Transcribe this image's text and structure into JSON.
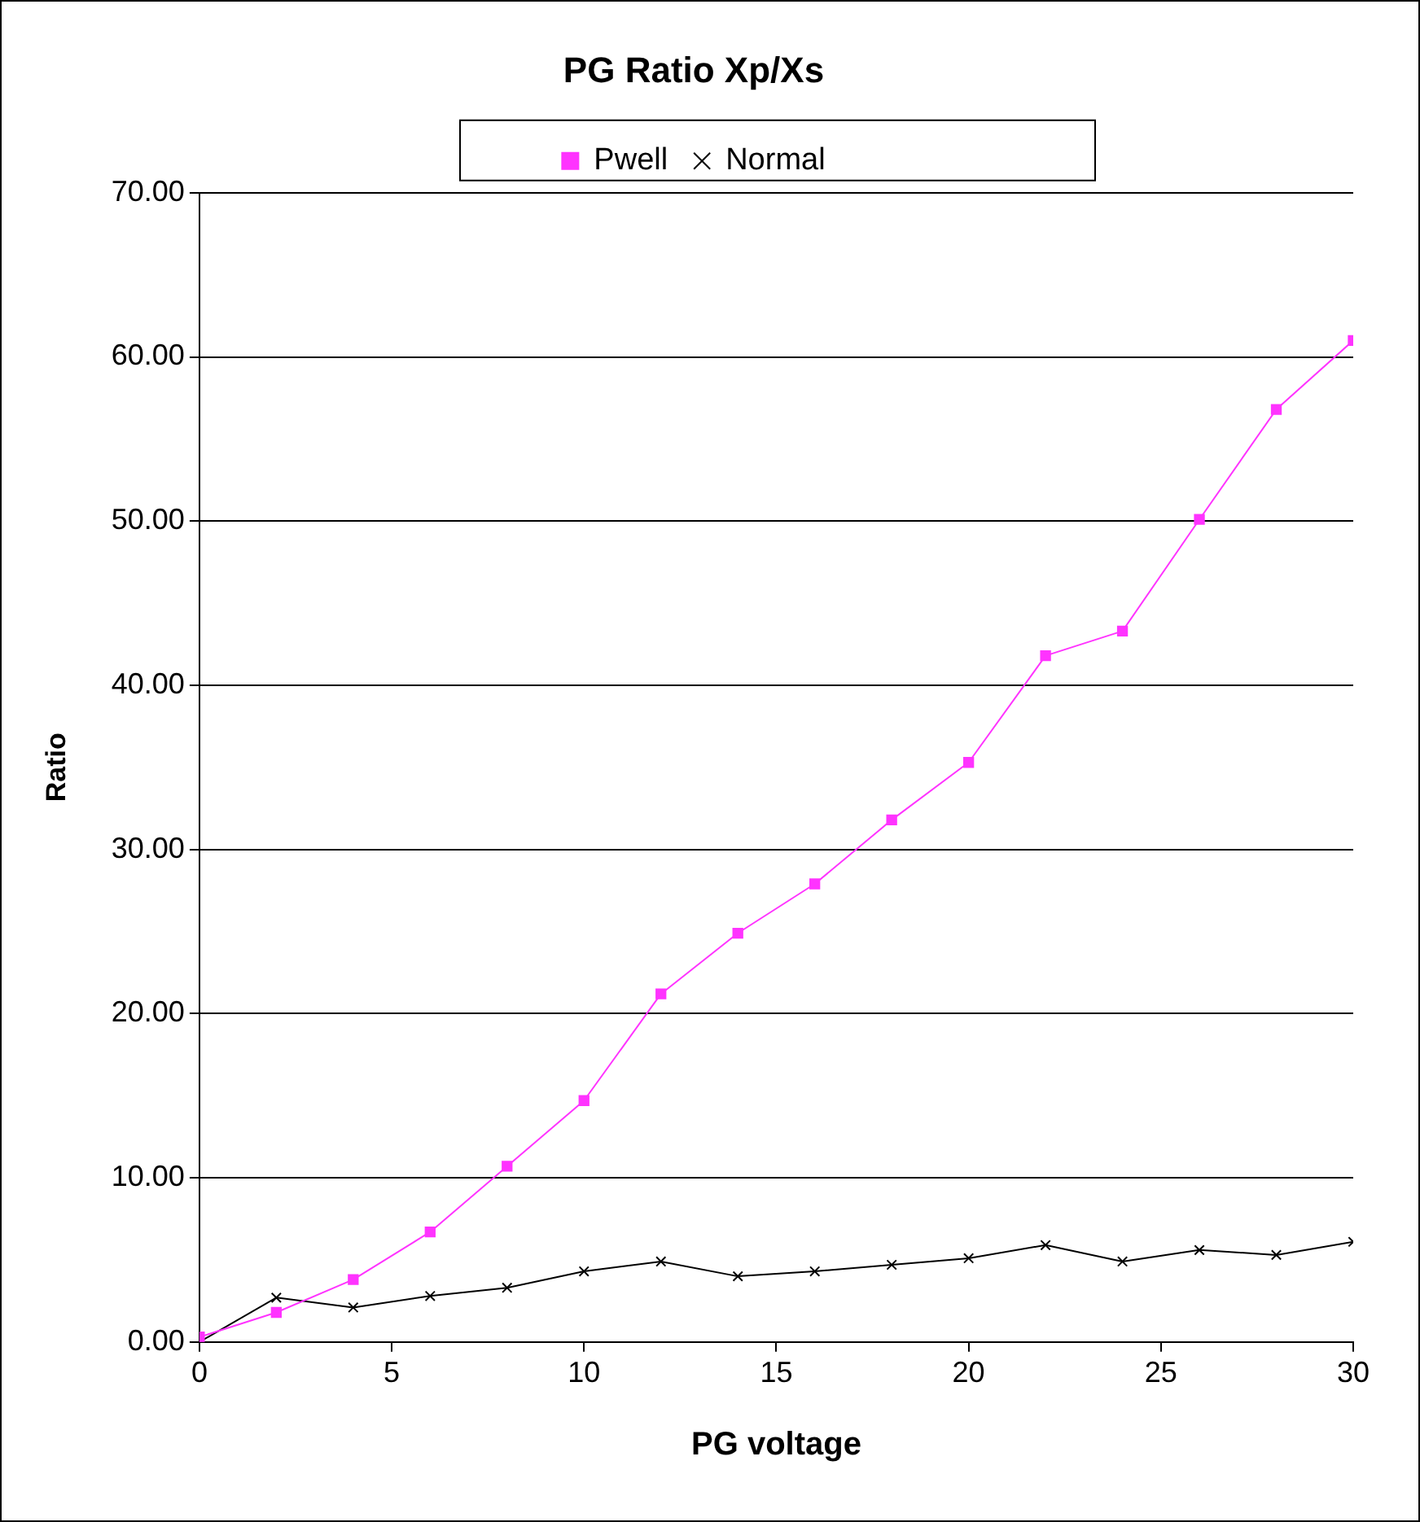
{
  "chart_data": {
    "type": "line",
    "title": "PG Ratio Xp/Xs",
    "xlabel": "PG voltage",
    "ylabel": "Ratio",
    "x": [
      0,
      2,
      4,
      6,
      8,
      10,
      12,
      14,
      16,
      18,
      20,
      22,
      24,
      26,
      28,
      30
    ],
    "series": [
      {
        "name": "Pwell",
        "color": "#ff33ff",
        "marker": "square",
        "values": [
          0.3,
          1.8,
          3.8,
          6.7,
          10.7,
          14.7,
          21.2,
          24.9,
          27.9,
          31.8,
          35.3,
          41.8,
          43.3,
          50.1,
          56.8,
          61.0
        ]
      },
      {
        "name": "Normal",
        "color": "#000000",
        "marker": "cross",
        "values": [
          0,
          2.7,
          2.1,
          2.8,
          3.3,
          4.3,
          4.9,
          4.0,
          4.3,
          4.7,
          5.1,
          5.9,
          4.9,
          5.6,
          5.3,
          6.1
        ]
      }
    ],
    "xlim": [
      0,
      30
    ],
    "xticks": [
      0,
      5,
      10,
      15,
      20,
      25,
      30
    ],
    "ylim": [
      0,
      70
    ],
    "yticks": [
      {
        "value": 0,
        "label": "0.00"
      },
      {
        "value": 10,
        "label": "10.00"
      },
      {
        "value": 20,
        "label": "20.00"
      },
      {
        "value": 30,
        "label": "30.00"
      },
      {
        "value": 40,
        "label": "40.00"
      },
      {
        "value": 50,
        "label": "50.00"
      },
      {
        "value": 60,
        "label": "60.00"
      },
      {
        "value": 70,
        "label": "70.00"
      }
    ],
    "grid": "y",
    "legend": "top",
    "line_style": "solid"
  }
}
